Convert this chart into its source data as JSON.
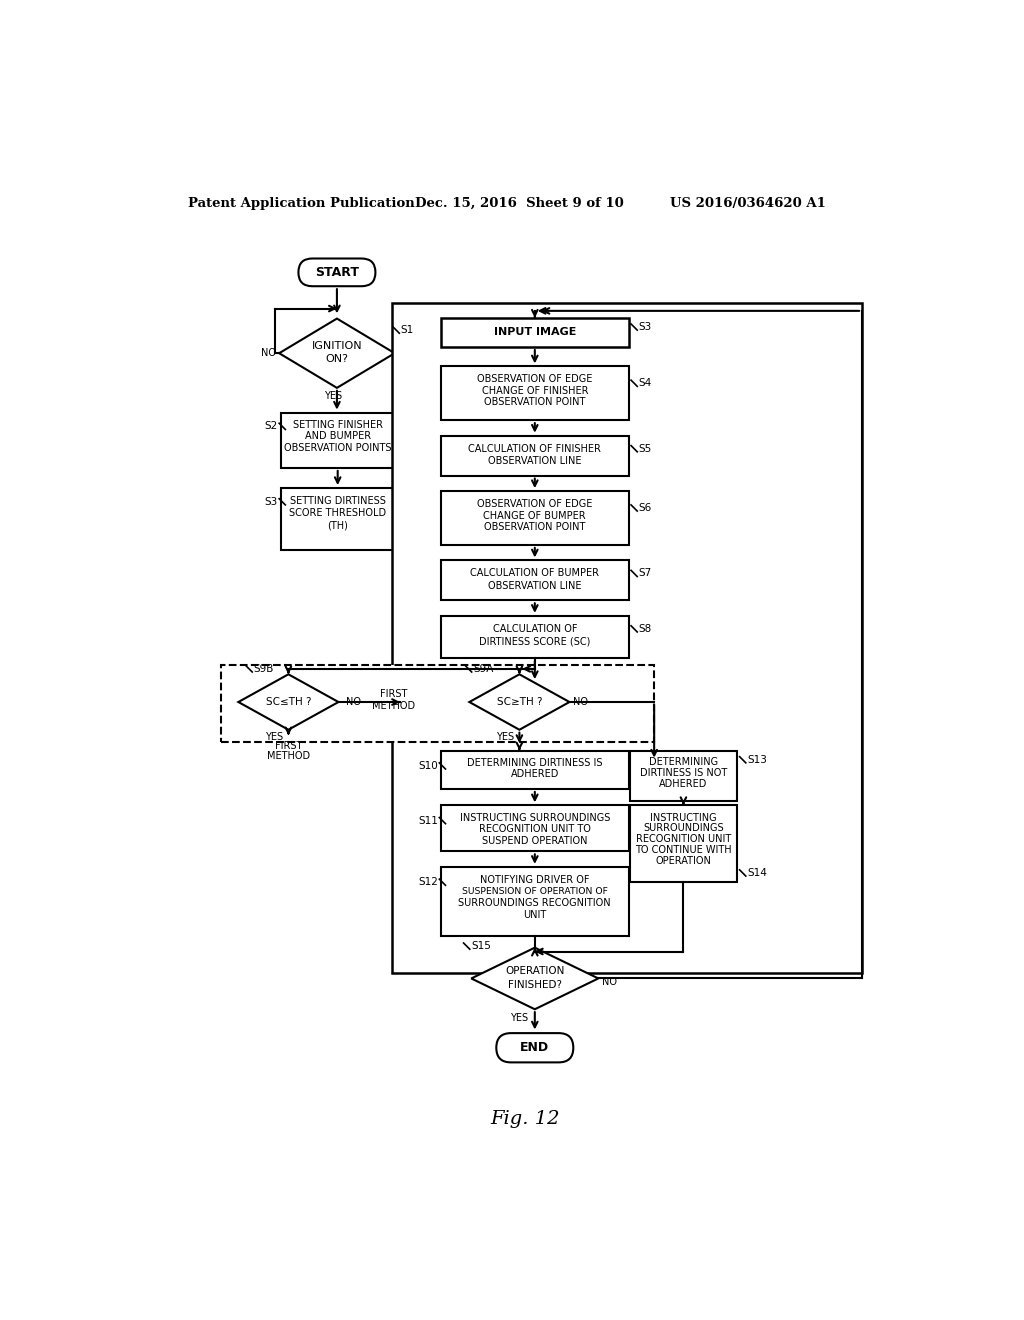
{
  "header_left": "Patent Application Publication",
  "header_mid": "Dec. 15, 2016  Sheet 9 of 10",
  "header_right": "US 2016/0364620 A1",
  "caption": "Fig. 12",
  "bg_color": "#ffffff",
  "line_color": "#000000",
  "text_color": "#000000"
}
